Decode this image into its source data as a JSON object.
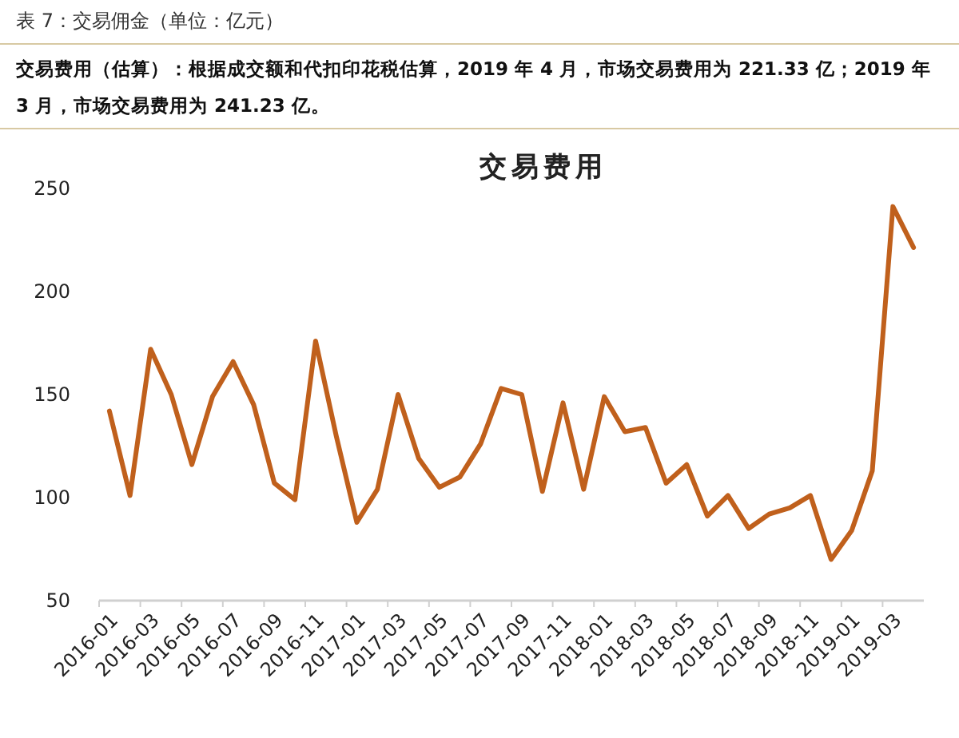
{
  "chart_data": {
    "type": "line",
    "title": "交易费用",
    "subtitle": "表 7：交易佣金（单位：亿元）",
    "annotations": [
      "交易费用（估算）：根据成交额和代扣印花税估算，2019 年 4 月，市场交易费用为 221.33 亿；2019 年 3 月，市场交易费用为 241.23 亿。"
    ],
    "categories": [
      "2016-01",
      null,
      "2016-03",
      null,
      "2016-05",
      null,
      "2016-07",
      null,
      "2016-09",
      null,
      "2016-11",
      null,
      "2017-01",
      null,
      "2017-03",
      null,
      "2017-05",
      null,
      "2017-07",
      null,
      "2017-09",
      null,
      "2017-11",
      null,
      "2018-01",
      null,
      "2018-03",
      null,
      "2018-05",
      null,
      "2018-07",
      null,
      "2018-09",
      null,
      "2018-11",
      null,
      "2019-01",
      null,
      "2019-03",
      null
    ],
    "series": [
      {
        "color": "#c0601c",
        "values": [
          142,
          101,
          172,
          150,
          116,
          149,
          166,
          145,
          107,
          99,
          176,
          130,
          88,
          104,
          150,
          119,
          105,
          110,
          126,
          153,
          150,
          103,
          146,
          104,
          149,
          132,
          134,
          107,
          116,
          91,
          101,
          85,
          92,
          95,
          101,
          70,
          84,
          113,
          241.23,
          221.33
        ]
      }
    ],
    "ylim": [
      50,
      250
    ],
    "yticks": [
      50,
      100,
      150,
      200,
      250
    ],
    "grid": false,
    "marker": "none",
    "line_style": "solid"
  }
}
